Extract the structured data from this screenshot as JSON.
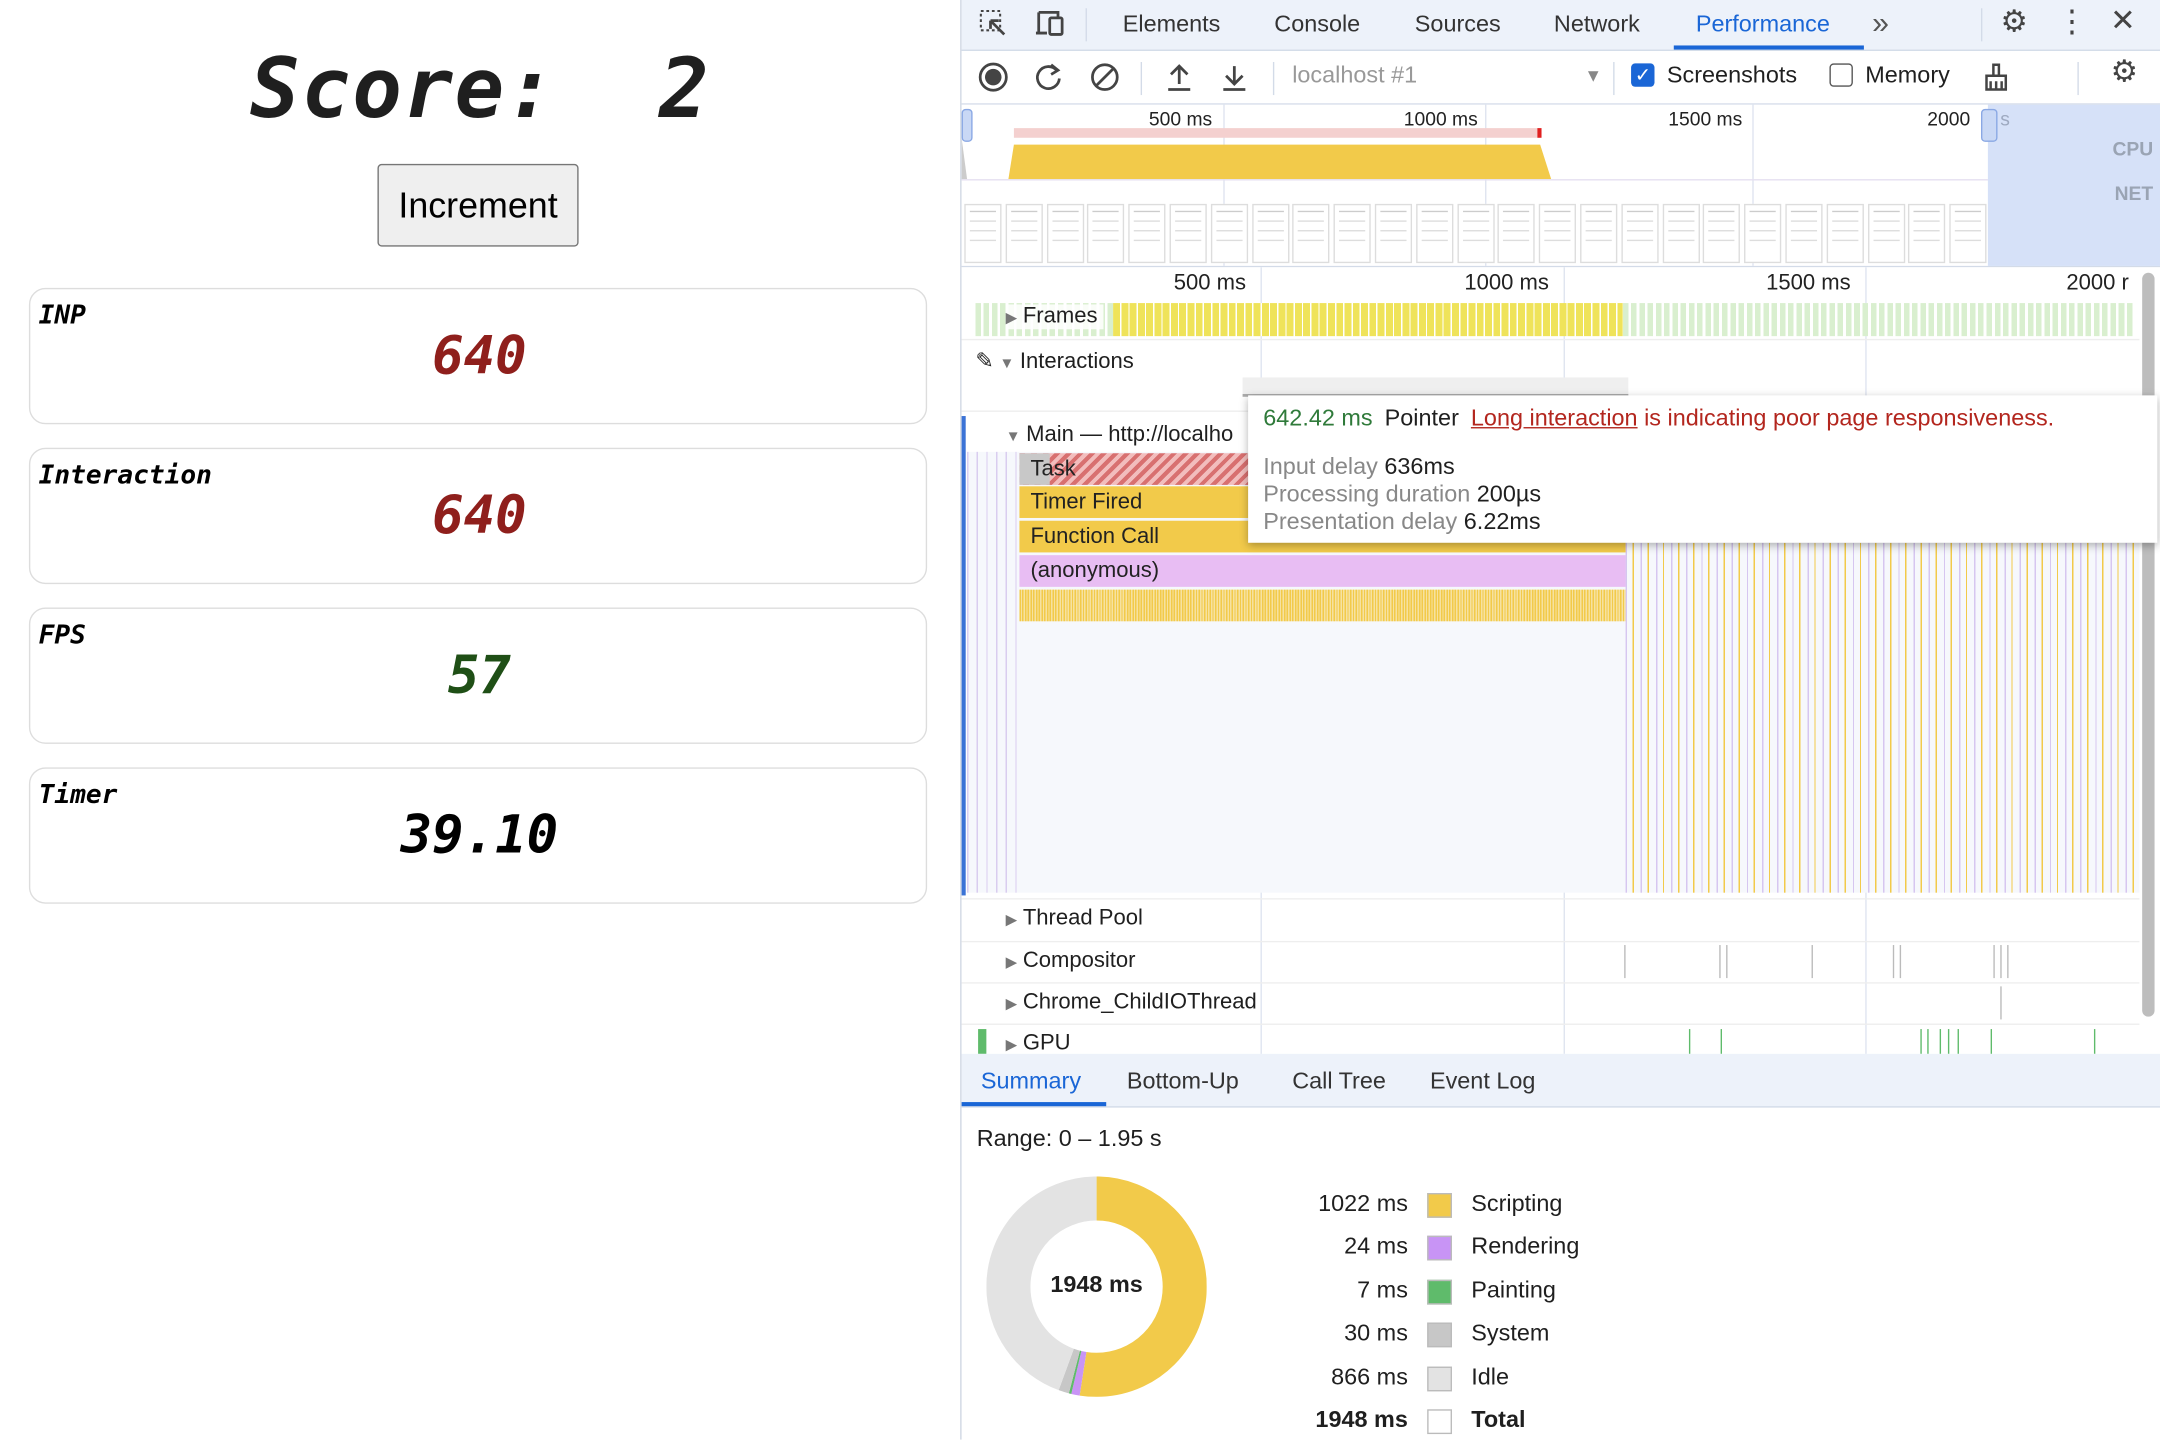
{
  "app": {
    "score_title": "Score:  2",
    "increment_label": "Increment",
    "metrics": [
      {
        "label": "INP",
        "value": "640",
        "color": "#8f1f1c"
      },
      {
        "label": "Interaction",
        "value": "640",
        "color": "#8f1f1c"
      },
      {
        "label": "FPS",
        "value": "57",
        "color": "#1f4f16"
      },
      {
        "label": "Timer",
        "value": "39.10",
        "color": "#000000"
      }
    ]
  },
  "devtools": {
    "tabs": [
      "Elements",
      "Console",
      "Sources",
      "Network",
      "Performance"
    ],
    "active_tab": "Performance",
    "more_tabs": "»",
    "toolbar": {
      "target": "localhost #1",
      "screenshots_label": "Screenshots",
      "screenshots_checked": true,
      "memory_label": "Memory",
      "memory_checked": false
    },
    "overview": {
      "ticks": [
        "500 ms",
        "1000 ms",
        "1500 ms",
        "2000"
      ],
      "tick_suffix": "s",
      "cpu_label": "CPU",
      "net_label": "NET"
    },
    "ruler_ticks": [
      "500 ms",
      "1000 ms",
      "1500 ms",
      "2000 r"
    ],
    "tracks": {
      "frames": "Frames",
      "interactions": "Interactions",
      "main": "Main — http://localho",
      "thread_pool": "Thread Pool",
      "compositor": "Compositor",
      "child_io": "Chrome_ChildIOThread",
      "gpu": "GPU"
    },
    "flame": {
      "task": "Task",
      "timer_fired": "Timer Fired",
      "function_call": "Function Call",
      "anonymous": "(anonymous)"
    },
    "tooltip": {
      "duration": "642.42 ms",
      "type": "Pointer",
      "link": "Long interaction",
      "message": " is indicating poor page responsiveness.",
      "rows": [
        {
          "label": "Input delay",
          "value": "636ms"
        },
        {
          "label": "Processing duration",
          "value": "200µs"
        },
        {
          "label": "Presentation delay",
          "value": "6.22ms"
        }
      ]
    },
    "bottom_tabs": [
      "Summary",
      "Bottom-Up",
      "Call Tree",
      "Event Log"
    ],
    "active_bottom_tab": "Summary",
    "summary": {
      "range": "Range: 0 – 1.95 s",
      "total_center": "1948 ms",
      "categories": [
        {
          "value_ms": 1022,
          "label_value": "1022 ms",
          "name": "Scripting",
          "color": "#f2ca4a"
        },
        {
          "value_ms": 24,
          "label_value": "24 ms",
          "name": "Rendering",
          "color": "#c894f5"
        },
        {
          "value_ms": 7,
          "label_value": "7 ms",
          "name": "Painting",
          "color": "#5fbb6b"
        },
        {
          "value_ms": 30,
          "label_value": "30 ms",
          "name": "System",
          "color": "#c7c7c7"
        },
        {
          "value_ms": 866,
          "label_value": "866 ms",
          "name": "Idle",
          "color": "#e3e3e3"
        }
      ],
      "total": {
        "label_value": "1948 ms",
        "name": "Total",
        "color": "#ffffff"
      }
    }
  }
}
